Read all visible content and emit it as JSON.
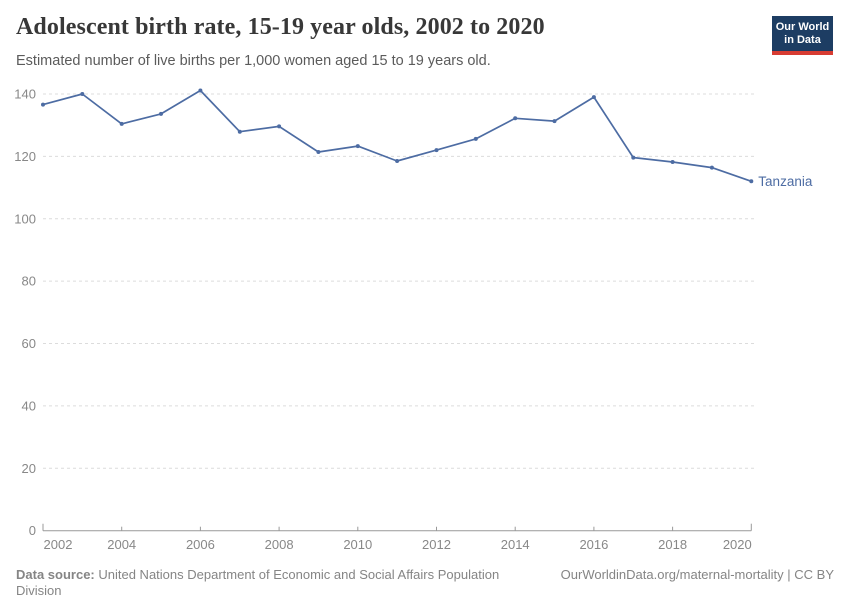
{
  "header": {
    "title": "Adolescent birth rate, 15-19 year olds, 2002 to 2020",
    "subtitle": "Estimated number of live births per 1,000 women aged 15 to 19 years old.",
    "logo": {
      "line1": "Our World",
      "line2": "in Data"
    }
  },
  "chart_data": {
    "type": "line",
    "title": "Adolescent birth rate, 15-19 year olds, 2002 to 2020",
    "xlabel": "",
    "ylabel": "Estimated number of live births per 1,000 women aged 15 to 19 years old",
    "x": [
      2002,
      2003,
      2004,
      2005,
      2006,
      2007,
      2008,
      2009,
      2010,
      2011,
      2012,
      2013,
      2014,
      2015,
      2016,
      2017,
      2018,
      2019,
      2020
    ],
    "series": [
      {
        "name": "Tanzania",
        "color": "#4d6ca3",
        "values": [
          136.6,
          140.0,
          130.4,
          133.6,
          141.1,
          127.9,
          129.6,
          121.4,
          123.3,
          118.5,
          122.0,
          125.6,
          132.2,
          131.3,
          139.0,
          119.6,
          118.2,
          116.4,
          112.0
        ]
      }
    ],
    "x_ticks": [
      2002,
      2004,
      2006,
      2008,
      2010,
      2012,
      2014,
      2016,
      2018,
      2020
    ],
    "y_ticks": [
      0,
      20,
      40,
      60,
      80,
      100,
      120,
      140
    ],
    "ylim": [
      0,
      143
    ],
    "grid": "horizontal-dashed",
    "legend": "end-of-line-label",
    "end_label": "Tanzania"
  },
  "colors": {
    "line": "#4d6ca3",
    "grid": "#dcdcdc",
    "axis": "#999999",
    "tick_text": "#888888",
    "title_text": "#383838",
    "subtitle_text": "#5b5b5b",
    "footer_text": "#858585",
    "logo_bg": "#1d3d63",
    "logo_accent": "#d73c32"
  },
  "footer": {
    "datasource_label": "Data source:",
    "datasource_text": " United Nations Department of Economic and Social Affairs Population Division",
    "credit": "OurWorldinData.org/maternal-mortality | CC BY"
  }
}
